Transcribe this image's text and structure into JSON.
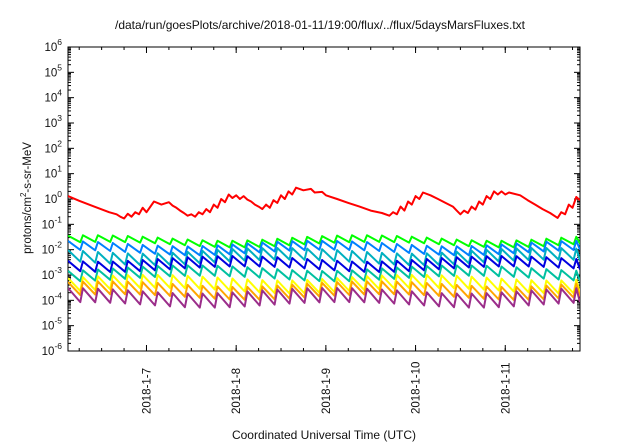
{
  "chart_data": {
    "type": "line",
    "title": "/data/run/goesPlots/archive/2018-01-11/19:00/flux/../flux/5daysMarsFluxes.txt",
    "xlabel": "Coordinated Universal Time (UTC)",
    "ylabel": {
      "prefix": "protons/cm",
      "sup": "2",
      "suffix": "-s-sr-MeV"
    },
    "yscale": "log",
    "ylim": [
      1e-06,
      1000000.0
    ],
    "xlim": [
      "2018-01-06 03:00",
      "2018-01-11 20:00"
    ],
    "x_ticks": [
      "2018-1-7",
      "2018-1-8",
      "2018-1-9",
      "2018-1-10",
      "2018-1-11"
    ],
    "y_ticks": [
      {
        "base": "10",
        "exp": "-6"
      },
      {
        "base": "10",
        "exp": "-5"
      },
      {
        "base": "10",
        "exp": "-4"
      },
      {
        "base": "10",
        "exp": "-3"
      },
      {
        "base": "10",
        "exp": "-2"
      },
      {
        "base": "10",
        "exp": "-1"
      },
      {
        "base": "10",
        "exp": "0"
      },
      {
        "base": "10",
        "exp": "1"
      },
      {
        "base": "10",
        "exp": "2"
      },
      {
        "base": "10",
        "exp": "3"
      },
      {
        "base": "10",
        "exp": "4"
      },
      {
        "base": "10",
        "exp": "5"
      },
      {
        "base": "10",
        "exp": "6"
      }
    ],
    "grid": false,
    "legend": "none",
    "series": [
      {
        "color": "#ff0000",
        "x": [
          "2018-01-06 03:00",
          "2018-01-06 06:00",
          "2018-01-06 10:00",
          "2018-01-06 14:00",
          "2018-01-06 16:00",
          "2018-01-06 17:00",
          "2018-01-06 18:00",
          "2018-01-06 19:00",
          "2018-01-06 20:00",
          "2018-01-06 21:00",
          "2018-01-06 22:00",
          "2018-01-06 23:00",
          "2018-01-07 00:00",
          "2018-01-07 02:00",
          "2018-01-07 04:00",
          "2018-01-07 06:00",
          "2018-01-07 07:00",
          "2018-01-07 08:00",
          "2018-01-07 09:00",
          "2018-01-07 10:00",
          "2018-01-07 11:00",
          "2018-01-07 12:00",
          "2018-01-07 13:00",
          "2018-01-07 14:00",
          "2018-01-07 15:00",
          "2018-01-07 16:00",
          "2018-01-07 17:00",
          "2018-01-07 18:00",
          "2018-01-07 19:00",
          "2018-01-07 20:00",
          "2018-01-07 21:00",
          "2018-01-07 22:00",
          "2018-01-07 23:00",
          "2018-01-08 00:00",
          "2018-01-08 01:00",
          "2018-01-08 02:00",
          "2018-01-08 03:00",
          "2018-01-08 04:00",
          "2018-01-08 05:00",
          "2018-01-08 06:00",
          "2018-01-08 07:00",
          "2018-01-08 08:00",
          "2018-01-08 09:00",
          "2018-01-08 10:00",
          "2018-01-08 11:00",
          "2018-01-08 12:00",
          "2018-01-08 13:00",
          "2018-01-08 14:00",
          "2018-01-08 15:00",
          "2018-01-08 16:00",
          "2018-01-08 18:00",
          "2018-01-08 20:00",
          "2018-01-08 21:00",
          "2018-01-08 23:00",
          "2018-01-09 00:00",
          "2018-01-09 03:00",
          "2018-01-09 06:00",
          "2018-01-09 09:00",
          "2018-01-09 12:00",
          "2018-01-09 15:00",
          "2018-01-09 17:00",
          "2018-01-09 18:00",
          "2018-01-09 19:00",
          "2018-01-09 20:00",
          "2018-01-09 21:00",
          "2018-01-09 22:00",
          "2018-01-09 23:00",
          "2018-01-10 00:00",
          "2018-01-10 01:00",
          "2018-01-10 02:00",
          "2018-01-10 04:00",
          "2018-01-10 06:00",
          "2018-01-10 08:00",
          "2018-01-10 10:00",
          "2018-01-10 11:00",
          "2018-01-10 12:00",
          "2018-01-10 13:00",
          "2018-01-10 14:00",
          "2018-01-10 15:00",
          "2018-01-10 16:00",
          "2018-01-10 17:00",
          "2018-01-10 18:00",
          "2018-01-10 19:00",
          "2018-01-10 20:00",
          "2018-01-10 21:00",
          "2018-01-10 22:00",
          "2018-01-10 23:00",
          "2018-01-11 00:00",
          "2018-01-11 01:00",
          "2018-01-11 04:00",
          "2018-01-11 06:00",
          "2018-01-11 08:00",
          "2018-01-11 10:00",
          "2018-01-11 12:00",
          "2018-01-11 14:00",
          "2018-01-11 15:00",
          "2018-01-11 16:00",
          "2018-01-11 17:00",
          "2018-01-11 18:00",
          "2018-01-11 19:00",
          "2018-01-11 20:00"
        ],
        "y": [
          1.3,
          0.85,
          0.5,
          0.3,
          0.25,
          0.2,
          0.17,
          0.26,
          0.2,
          0.3,
          0.25,
          0.45,
          0.3,
          0.8,
          0.6,
          0.75,
          0.55,
          0.45,
          0.35,
          0.28,
          0.22,
          0.25,
          0.2,
          0.3,
          0.25,
          0.4,
          0.3,
          0.6,
          0.45,
          1.0,
          0.75,
          1.5,
          1.1,
          1.4,
          1.0,
          1.3,
          0.95,
          0.8,
          0.6,
          0.5,
          0.4,
          0.6,
          0.45,
          0.9,
          0.7,
          1.4,
          1.0,
          2.0,
          1.5,
          2.8,
          2.2,
          2.5,
          1.8,
          1.9,
          1.4,
          1.0,
          0.7,
          0.5,
          0.35,
          0.28,
          0.22,
          0.3,
          0.25,
          0.5,
          0.35,
          0.8,
          0.6,
          1.3,
          1.0,
          1.8,
          1.4,
          1.0,
          0.7,
          0.5,
          0.35,
          0.25,
          0.35,
          0.28,
          0.5,
          0.38,
          0.8,
          0.6,
          1.3,
          1.0,
          2.0,
          1.5,
          2.0,
          1.5,
          1.8,
          1.4,
          0.9,
          0.6,
          0.4,
          0.28,
          0.18,
          0.3,
          0.25,
          0.6,
          0.45,
          1.2,
          0.9
        ]
      },
      {
        "color": "#00ff00",
        "base": 0.022,
        "amp": 1.35
      },
      {
        "color": "#0080ff",
        "base": 0.012,
        "amp": 1.5
      },
      {
        "color": "#00b0c0",
        "base": 0.0055,
        "amp": 1.7
      },
      {
        "color": "#0000e0",
        "base": 0.0028,
        "amp": 1.6
      },
      {
        "color": "#00c0a0",
        "base": 0.0012,
        "amp": 1.6
      },
      {
        "color": "#ffff00",
        "base": 0.00045,
        "amp": 1.8
      },
      {
        "color": "#ffa500",
        "base": 0.00025,
        "amp": 1.8
      },
      {
        "color": "#9b2d8a",
        "base": 0.00013,
        "amp": 1.9
      }
    ],
    "sawtooth_period_hours": 4
  }
}
